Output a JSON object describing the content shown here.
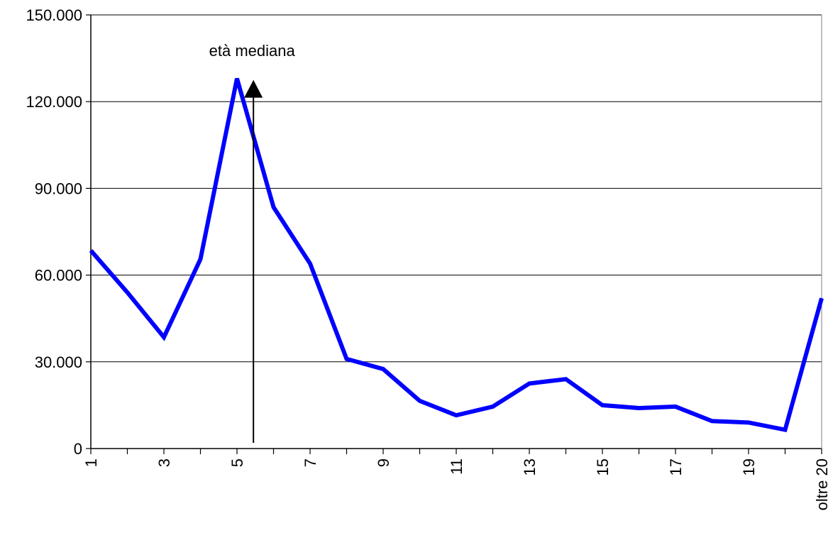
{
  "chart_data": {
    "type": "line",
    "title": "",
    "xlabel": "",
    "ylabel": "",
    "categories": [
      "1",
      "2",
      "3",
      "4",
      "5",
      "6",
      "7",
      "8",
      "9",
      "10",
      "11",
      "12",
      "13",
      "14",
      "15",
      "16",
      "17",
      "18",
      "19",
      "20",
      "oltre 20"
    ],
    "x_tick_labels_shown": [
      "1",
      "3",
      "5",
      "7",
      "9",
      "11",
      "13",
      "15",
      "17",
      "19",
      "oltre 20"
    ],
    "series": [
      {
        "color": "#0000ff",
        "values": [
          68500,
          54000,
          38500,
          65500,
          128000,
          83500,
          64000,
          31000,
          27500,
          16500,
          11500,
          14500,
          22500,
          24000,
          15000,
          14000,
          14500,
          9500,
          9000,
          6500,
          52000
        ]
      }
    ],
    "ylim": [
      0,
      150000
    ],
    "y_ticks": [
      0,
      30000,
      60000,
      90000,
      120000,
      150000
    ],
    "y_tick_labels": [
      "0",
      "30.000",
      "60.000",
      "90.000",
      "120.000",
      "150.000"
    ],
    "grid": "horizontal",
    "annotations": [
      {
        "text": "età mediana",
        "x_position": 5.45,
        "arrow": "up"
      }
    ]
  }
}
